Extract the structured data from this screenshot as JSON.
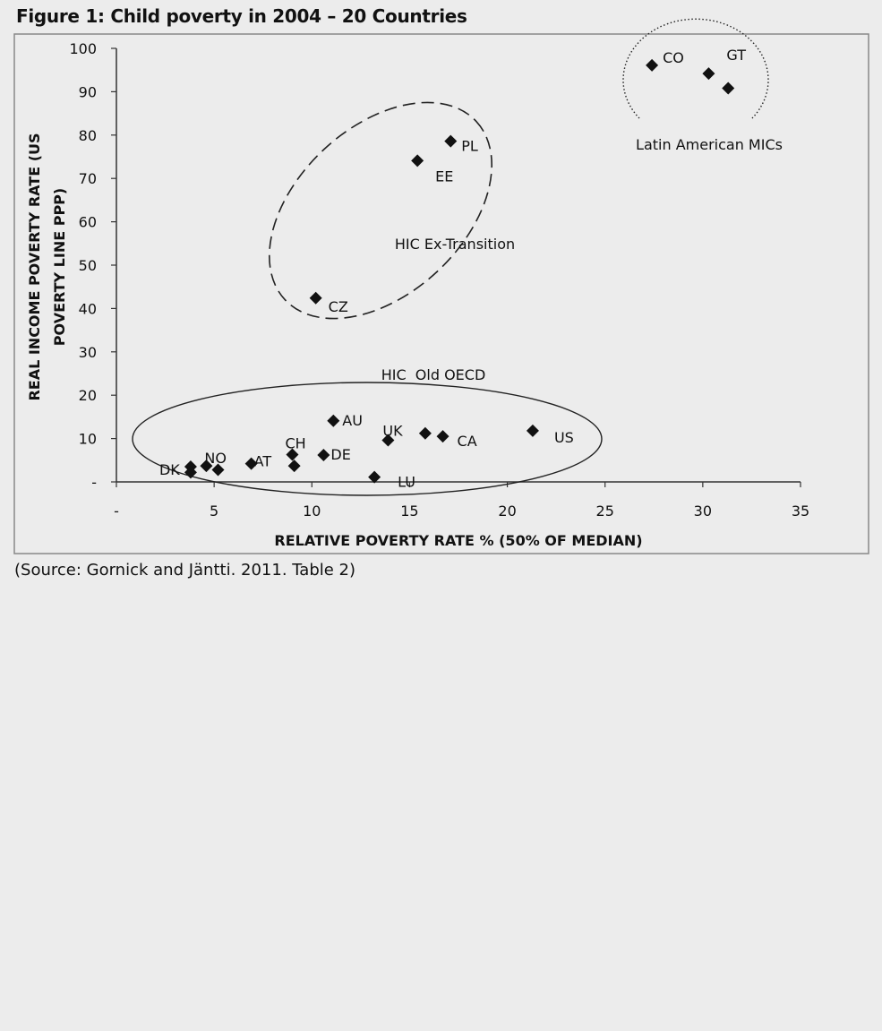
{
  "figure_title": "Figure 1: Child poverty in 2004 – 20 Countries",
  "source_note": "(Source: Gornick and Jäntti. 2011. Table 2)",
  "chart_data": {
    "type": "scatter",
    "xlabel": "RELATIVE POVERTY RATE % (50% OF MEDIAN)",
    "ylabel_line1": "REAL INCOME POVERTY RATE (US",
    "ylabel_line2": "POVERTY LINE PPP)",
    "xlim": [
      0,
      35
    ],
    "ylim": [
      0,
      100
    ],
    "x_ticks": [
      {
        "value": 0,
        "label": "-"
      },
      {
        "value": 5,
        "label": "5"
      },
      {
        "value": 10,
        "label": "10"
      },
      {
        "value": 15,
        "label": "15"
      },
      {
        "value": 20,
        "label": "20"
      },
      {
        "value": 25,
        "label": "25"
      },
      {
        "value": 30,
        "label": "30"
      },
      {
        "value": 35,
        "label": "35"
      }
    ],
    "y_ticks": [
      {
        "value": 0,
        "label": "-"
      },
      {
        "value": 10,
        "label": "10"
      },
      {
        "value": 20,
        "label": "20"
      },
      {
        "value": 30,
        "label": "30"
      },
      {
        "value": 40,
        "label": "40"
      },
      {
        "value": 50,
        "label": "50"
      },
      {
        "value": 60,
        "label": "60"
      },
      {
        "value": 70,
        "label": "70"
      },
      {
        "value": 80,
        "label": "80"
      },
      {
        "value": 90,
        "label": "90"
      },
      {
        "value": 100,
        "label": "100"
      }
    ],
    "marker": "diamond",
    "marker_color": "#111111",
    "points": [
      {
        "x": 27.4,
        "y": 96.1,
        "label": "CO"
      },
      {
        "x": 30.3,
        "y": 94.2,
        "label": "GT"
      },
      {
        "x": 31.3,
        "y": 90.8,
        "label": ""
      },
      {
        "x": 17.1,
        "y": 78.6,
        "label": "PL"
      },
      {
        "x": 15.4,
        "y": 74.1,
        "label": "EE"
      },
      {
        "x": 10.2,
        "y": 42.4,
        "label": "CZ"
      },
      {
        "x": 11.1,
        "y": 14.1,
        "label": "AU"
      },
      {
        "x": 21.3,
        "y": 11.8,
        "label": "US"
      },
      {
        "x": 15.8,
        "y": 11.2,
        "label": ""
      },
      {
        "x": 16.7,
        "y": 10.5,
        "label": "CA"
      },
      {
        "x": 13.9,
        "y": 9.6,
        "label": "UK"
      },
      {
        "x": 9.0,
        "y": 6.3,
        "label": "CH"
      },
      {
        "x": 10.6,
        "y": 6.2,
        "label": "DE"
      },
      {
        "x": 6.9,
        "y": 4.2,
        "label": "AT"
      },
      {
        "x": 9.1,
        "y": 3.7,
        "label": ""
      },
      {
        "x": 4.6,
        "y": 3.7,
        "label": "NO"
      },
      {
        "x": 3.8,
        "y": 3.5,
        "label": "DK"
      },
      {
        "x": 5.2,
        "y": 2.8,
        "label": ""
      },
      {
        "x": 3.8,
        "y": 2.2,
        "label": ""
      },
      {
        "x": 13.2,
        "y": 1.1,
        "label": "LU"
      }
    ],
    "groups": [
      {
        "name": "Latin American MICs",
        "style": "dotted"
      },
      {
        "name": "HIC Ex-Transition",
        "style": "dashed"
      },
      {
        "name": "HIC  Old OECD",
        "style": "solid"
      }
    ],
    "grid": false,
    "legend": "none"
  }
}
